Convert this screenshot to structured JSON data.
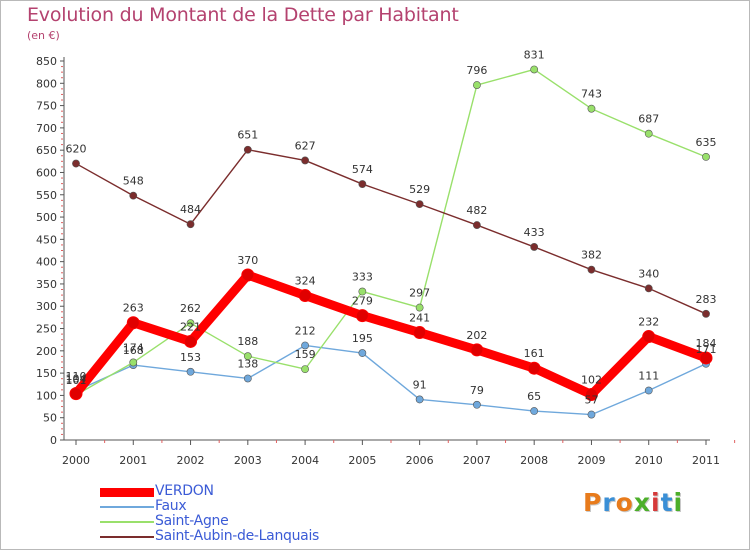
{
  "header": {
    "title": "Evolution du Montant de la Dette par Habitant",
    "subtitle": "(en €)"
  },
  "logo": {
    "text": "Proxiti"
  },
  "chart_data": {
    "type": "line",
    "title": "Evolution du Montant de la Dette par Habitant",
    "ylabel": "(en €)",
    "xlabel": "",
    "x": [
      "2000",
      "2001",
      "2002",
      "2003",
      "2004",
      "2005",
      "2006",
      "2007",
      "2008",
      "2009",
      "2010",
      "2011"
    ],
    "ylim": [
      0,
      850
    ],
    "yticks": [
      0,
      50,
      100,
      150,
      200,
      250,
      300,
      350,
      400,
      450,
      500,
      550,
      600,
      650,
      700,
      750,
      800,
      850
    ],
    "grid": false,
    "legend_position": "bottom-left",
    "series": [
      {
        "name": "VERDON",
        "color": "#ff0000",
        "legend_color": "#3b5bd6",
        "highlight": true,
        "values": [
          104,
          263,
          221,
          370,
          324,
          279,
          241,
          202,
          161,
          102,
          232,
          184
        ],
        "labels": [
          "104",
          "263",
          "221",
          "370",
          "324",
          "279",
          "241",
          "202",
          "161",
          "102",
          "232",
          "184"
        ]
      },
      {
        "name": "Faux",
        "color": "#6fa8dc",
        "legend_color": "#3b5bd6",
        "highlight": false,
        "values": [
          110,
          168,
          153,
          138,
          212,
          195,
          91,
          79,
          65,
          57,
          111,
          171
        ],
        "labels": [
          "110",
          "168",
          "153",
          "138",
          "212",
          "195",
          "91",
          "79",
          "65",
          "57",
          "111",
          "171"
        ]
      },
      {
        "name": "Saint-Agne",
        "color": "#99e06b",
        "legend_color": "#3b5bd6",
        "highlight": false,
        "values": [
          101,
          174,
          262,
          188,
          159,
          333,
          297,
          796,
          831,
          743,
          687,
          635
        ],
        "labels": [
          "101",
          "174",
          "262",
          "188",
          "159",
          "333",
          "297",
          "796",
          "831",
          "743",
          "687",
          "635"
        ]
      },
      {
        "name": "Saint-Aubin-de-Lanquais",
        "color": "#7b2d2d",
        "legend_color": "#3b5bd6",
        "highlight": false,
        "values": [
          620,
          548,
          484,
          651,
          627,
          574,
          529,
          482,
          433,
          382,
          340,
          283
        ],
        "labels": [
          "620",
          "548",
          "484",
          "651",
          "627",
          "574",
          "529",
          "482",
          "433",
          "382",
          "340",
          "283"
        ]
      }
    ]
  }
}
